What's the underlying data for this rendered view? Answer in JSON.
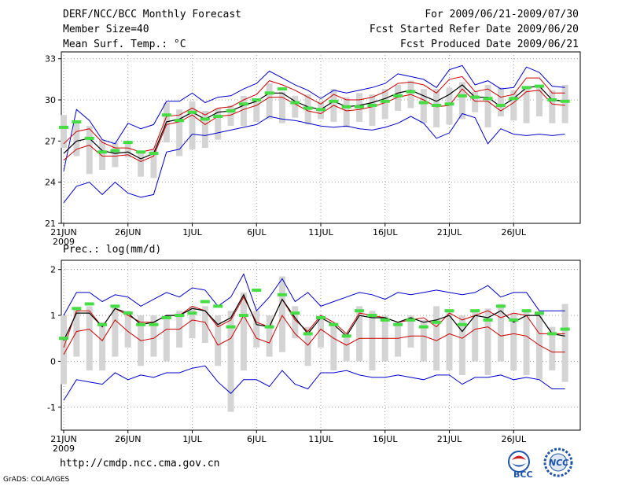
{
  "header": {
    "title": "DERF/NCC/BCC Monthly Forecast",
    "member_size": "Member Size=40",
    "variable": "Mean Surf. Temp.: °C",
    "period": "For 2009/06/21-2009/07/30",
    "refer_date": "Fcst Started Refer Date 2009/06/20",
    "produced_date": "Fcst Produced Date 2009/06/21"
  },
  "precip_label": "Prec.: log(mm/d)",
  "url": "http://cmdp.ncc.cma.gov.cn",
  "credit": "GrADS: COLA/IGES",
  "logos": {
    "bcc": "BCC",
    "ncc": "NCC"
  },
  "colors": {
    "envelope": "#0000cc",
    "spread": "#cc0000",
    "ensemble_mean": "#000000",
    "observation": "#44dd44",
    "box": "#d4d4d4"
  },
  "chart_data": [
    {
      "type": "line",
      "title": "Mean Surf. Temp.",
      "ylabel": "°C",
      "ylim": [
        21,
        33.5
      ],
      "yticks": [
        21,
        24,
        27,
        30,
        33
      ],
      "x_tick_labels": [
        "21JUN",
        "26JUN",
        "1JUL",
        "6JUL",
        "11JUL",
        "16JUL",
        "21JUL",
        "26JUL"
      ],
      "x_tick_days": [
        1,
        6,
        11,
        16,
        21,
        26,
        31,
        36
      ],
      "year_label": "2009",
      "grid": true,
      "series": [
        {
          "name": "max",
          "values": [
            24.8,
            29.3,
            28.5,
            27.1,
            26.8,
            28.3,
            27.9,
            28.2,
            29.9,
            29.9,
            30.5,
            29.8,
            30.2,
            30.3,
            30.8,
            31.2,
            32.1,
            31.6,
            31.1,
            30.7,
            30.1,
            30.7,
            30.5,
            30.7,
            30.9,
            31.2,
            31.9,
            31.7,
            31.5,
            30.9,
            32.2,
            32.5,
            31.1,
            31.4,
            30.8,
            30.9,
            32.4,
            32.0,
            31.0,
            30.9
          ]
        },
        {
          "name": "upper",
          "values": [
            26.8,
            27.7,
            27.9,
            26.9,
            26.5,
            26.5,
            26.2,
            26.4,
            28.8,
            28.9,
            29.4,
            28.9,
            29.4,
            29.5,
            30.0,
            30.4,
            31.4,
            31.1,
            30.7,
            30.2,
            29.7,
            30.4,
            30.0,
            30.0,
            30.2,
            30.6,
            31.2,
            31.3,
            31.1,
            30.5,
            31.5,
            31.7,
            30.6,
            30.8,
            30.2,
            30.4,
            31.6,
            31.6,
            30.5,
            30.5
          ]
        },
        {
          "name": "mean",
          "values": [
            26.1,
            27.0,
            27.2,
            26.3,
            26.1,
            26.2,
            25.7,
            26.1,
            28.4,
            28.6,
            29.1,
            28.6,
            29.1,
            29.2,
            29.6,
            29.9,
            30.5,
            30.5,
            29.9,
            29.5,
            29.3,
            29.9,
            29.5,
            29.6,
            29.8,
            30.1,
            30.5,
            30.7,
            30.3,
            29.9,
            30.4,
            31.1,
            30.2,
            30.2,
            29.5,
            30.1,
            30.9,
            31.0,
            30.0,
            29.9
          ]
        },
        {
          "name": "lower",
          "values": [
            25.6,
            26.4,
            26.7,
            25.9,
            25.9,
            26.0,
            25.5,
            25.9,
            28.2,
            28.4,
            28.9,
            28.2,
            28.8,
            28.9,
            29.3,
            29.6,
            30.2,
            30.2,
            29.7,
            29.2,
            29.0,
            29.6,
            29.2,
            29.3,
            29.5,
            29.8,
            30.2,
            30.4,
            30.0,
            29.5,
            29.6,
            30.8,
            29.9,
            29.9,
            29.2,
            29.8,
            30.6,
            30.7,
            29.7,
            29.6
          ]
        },
        {
          "name": "min",
          "values": [
            22.5,
            23.7,
            24.0,
            23.1,
            24.0,
            23.2,
            22.9,
            23.1,
            26.2,
            26.4,
            27.5,
            27.4,
            27.6,
            27.8,
            28.0,
            28.2,
            28.8,
            28.6,
            28.5,
            28.3,
            28.1,
            28.0,
            28.1,
            27.9,
            27.8,
            28.0,
            28.3,
            28.8,
            28.3,
            27.2,
            27.6,
            29.0,
            28.7,
            26.8,
            27.9,
            27.5,
            27.4,
            27.5,
            27.4,
            27.5
          ]
        },
        {
          "name": "observation",
          "values": [
            28.0,
            28.4,
            27.2,
            26.2,
            26.3,
            26.9,
            26.2,
            26.1,
            28.9,
            28.5,
            29.1,
            28.6,
            28.8,
            29.2,
            29.7,
            30.0,
            30.5,
            30.8,
            29.8,
            29.4,
            29.3,
            29.9,
            29.5,
            29.5,
            29.6,
            29.9,
            30.3,
            30.6,
            29.8,
            29.6,
            29.7,
            30.3,
            30.2,
            30.1,
            29.6,
            30.1,
            30.9,
            31.0,
            30.0,
            29.9
          ]
        }
      ],
      "boxes": [
        [
          26.5,
          28.9
        ],
        [
          25.9,
          28.5
        ],
        [
          24.6,
          28.1
        ],
        [
          24.9,
          27.1
        ],
        [
          25.1,
          26.9
        ],
        [
          25.8,
          27.0
        ],
        [
          24.4,
          26.1
        ],
        [
          24.3,
          26.4
        ],
        [
          26.9,
          29.8
        ],
        [
          25.9,
          29.3
        ],
        [
          26.4,
          29.9
        ],
        [
          26.5,
          29.2
        ],
        [
          27.1,
          29.4
        ],
        [
          28.1,
          29.6
        ],
        [
          28.1,
          30.3
        ],
        [
          28.4,
          30.1
        ],
        [
          28.6,
          31.2
        ],
        [
          28.3,
          30.6
        ],
        [
          28.7,
          30.3
        ],
        [
          28.2,
          30.4
        ],
        [
          28.6,
          29.9
        ],
        [
          28.4,
          30.8
        ],
        [
          28.0,
          30.2
        ],
        [
          28.4,
          30.5
        ],
        [
          28.1,
          30.4
        ],
        [
          28.6,
          30.8
        ],
        [
          29.2,
          31.1
        ],
        [
          29.4,
          31.4
        ],
        [
          28.3,
          30.8
        ],
        [
          28.0,
          30.8
        ],
        [
          28.2,
          30.9
        ],
        [
          28.6,
          31.3
        ],
        [
          29.1,
          30.6
        ],
        [
          28.0,
          31.1
        ],
        [
          28.8,
          30.9
        ],
        [
          28.5,
          30.7
        ],
        [
          28.3,
          30.8
        ],
        [
          28.8,
          31.0
        ],
        [
          28.3,
          30.7
        ],
        [
          28.3,
          31.1
        ]
      ]
    },
    {
      "type": "line",
      "title": "Prec.: log(mm/d)",
      "ylabel": "log(mm/d)",
      "ylim": [
        -1.5,
        2.2
      ],
      "yticks": [
        -1,
        0,
        1,
        2
      ],
      "x_tick_labels": [
        "21JUN",
        "26JUN",
        "1JUL",
        "6JUL",
        "11JUL",
        "16JUL",
        "21JUL",
        "26JUL"
      ],
      "x_tick_days": [
        1,
        6,
        11,
        16,
        21,
        26,
        31,
        36
      ],
      "year_label": "2009",
      "grid": true,
      "series": [
        {
          "name": "max",
          "values": [
            1.0,
            1.5,
            1.5,
            1.3,
            1.45,
            1.4,
            1.2,
            1.35,
            1.5,
            1.4,
            1.6,
            1.55,
            1.2,
            1.4,
            1.9,
            1.1,
            1.4,
            1.8,
            1.3,
            1.5,
            1.2,
            1.3,
            1.4,
            1.5,
            1.45,
            1.35,
            1.5,
            1.45,
            1.5,
            1.55,
            1.5,
            1.45,
            1.5,
            1.65,
            1.4,
            1.5,
            1.5,
            1.1,
            1.1,
            1.1
          ]
        },
        {
          "name": "upper",
          "values": [
            0.3,
            1.1,
            1.1,
            0.75,
            1.15,
            1.0,
            0.85,
            0.85,
            1.0,
            1.0,
            1.2,
            1.1,
            0.75,
            0.9,
            1.4,
            0.85,
            0.75,
            1.35,
            0.9,
            0.65,
            1.0,
            0.85,
            0.6,
            1.05,
            1.0,
            0.95,
            0.85,
            0.9,
            0.95,
            0.75,
            1.05,
            0.9,
            1.0,
            1.1,
            0.95,
            1.05,
            1.0,
            0.6,
            0.6,
            0.6
          ]
        },
        {
          "name": "mean",
          "values": [
            0.45,
            1.05,
            1.05,
            0.75,
            1.15,
            1.05,
            0.8,
            0.85,
            1.0,
            1.0,
            1.15,
            1.1,
            0.8,
            0.95,
            1.45,
            0.8,
            0.75,
            1.35,
            0.95,
            0.6,
            0.95,
            0.8,
            0.55,
            1.0,
            0.95,
            0.95,
            0.85,
            0.95,
            0.85,
            0.9,
            1.0,
            0.65,
            1.0,
            0.95,
            1.1,
            0.85,
            1.0,
            1.0,
            0.6,
            0.55
          ]
        },
        {
          "name": "lower",
          "values": [
            0.15,
            0.65,
            0.7,
            0.45,
            0.9,
            0.65,
            0.45,
            0.5,
            0.7,
            0.7,
            0.9,
            0.85,
            0.35,
            0.5,
            1.0,
            0.5,
            0.4,
            1.0,
            0.6,
            0.35,
            0.7,
            0.5,
            0.35,
            0.5,
            0.5,
            0.5,
            0.5,
            0.55,
            0.55,
            0.45,
            0.6,
            0.5,
            0.7,
            0.75,
            0.55,
            0.6,
            0.55,
            0.35,
            0.2,
            0.2
          ]
        },
        {
          "name": "min",
          "values": [
            -0.85,
            -0.4,
            -0.45,
            -0.5,
            -0.25,
            -0.4,
            -0.3,
            -0.35,
            -0.25,
            -0.25,
            -0.15,
            -0.1,
            -0.45,
            -0.7,
            -0.4,
            -0.4,
            -0.55,
            -0.2,
            -0.5,
            -0.6,
            -0.25,
            -0.25,
            -0.2,
            -0.3,
            -0.35,
            -0.35,
            -0.3,
            -0.35,
            -0.4,
            -0.3,
            -0.3,
            -0.5,
            -0.35,
            -0.35,
            -0.3,
            -0.4,
            -0.35,
            -0.4,
            -0.6,
            -0.6
          ]
        },
        {
          "name": "observation",
          "values": [
            0.5,
            1.15,
            1.25,
            0.8,
            1.2,
            1.05,
            0.8,
            0.8,
            0.95,
            1.0,
            1.05,
            1.3,
            1.2,
            0.75,
            1.0,
            1.55,
            0.75,
            1.45,
            1.05,
            0.6,
            0.95,
            0.8,
            0.55,
            1.1,
            1.0,
            0.9,
            0.8,
            0.9,
            0.75,
            0.85,
            1.1,
            0.8,
            1.1,
            0.9,
            1.2,
            0.9,
            1.1,
            1.05,
            0.6,
            0.7
          ]
        }
      ],
      "boxes": [
        [
          -0.5,
          1.0
        ],
        [
          0.1,
          1.15
        ],
        [
          -0.2,
          1.2
        ],
        [
          -0.2,
          0.85
        ],
        [
          0.1,
          1.2
        ],
        [
          0.3,
          1.1
        ],
        [
          -0.1,
          1.0
        ],
        [
          0.1,
          1.0
        ],
        [
          0.0,
          1.0
        ],
        [
          0.3,
          1.1
        ],
        [
          0.5,
          1.2
        ],
        [
          0.4,
          1.2
        ],
        [
          -0.1,
          1.0
        ],
        [
          -1.1,
          1.1
        ],
        [
          -0.2,
          1.5
        ],
        [
          0.3,
          1.1
        ],
        [
          0.1,
          1.0
        ],
        [
          0.2,
          1.85
        ],
        [
          0.5,
          1.2
        ],
        [
          -0.1,
          0.75
        ],
        [
          0.3,
          1.0
        ],
        [
          -0.2,
          0.85
        ],
        [
          0.0,
          0.6
        ],
        [
          0.0,
          1.2
        ],
        [
          -0.2,
          1.1
        ],
        [
          0.0,
          1.0
        ],
        [
          0.1,
          0.85
        ],
        [
          0.3,
          1.0
        ],
        [
          0.0,
          0.9
        ],
        [
          -0.2,
          1.2
        ],
        [
          -0.2,
          1.1
        ],
        [
          -0.3,
          1.0
        ],
        [
          0.0,
          1.1
        ],
        [
          -0.3,
          1.15
        ],
        [
          0.0,
          1.25
        ],
        [
          -0.2,
          1.05
        ],
        [
          -0.3,
          1.1
        ],
        [
          -0.4,
          1.05
        ],
        [
          -0.2,
          0.75
        ],
        [
          -0.45,
          1.25
        ]
      ]
    }
  ]
}
